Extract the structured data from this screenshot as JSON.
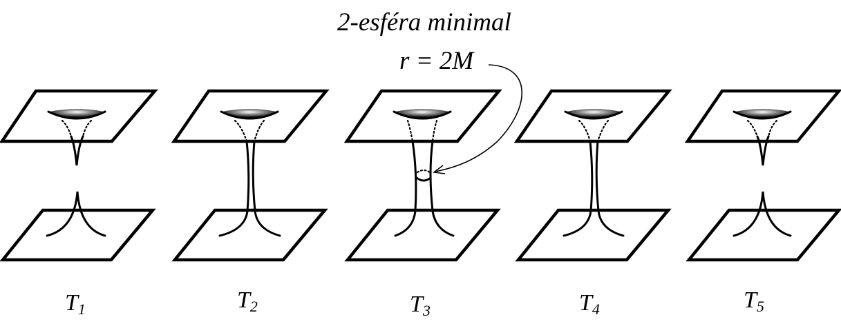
{
  "annotation": {
    "title": "2-esféra minimal",
    "formula": "r = 2M"
  },
  "stages": [
    {
      "letter": "T",
      "subscript": "1",
      "state": "pinched"
    },
    {
      "letter": "T",
      "subscript": "2",
      "state": "connected"
    },
    {
      "letter": "T",
      "subscript": "3",
      "state": "maximal-throat"
    },
    {
      "letter": "T",
      "subscript": "4",
      "state": "connected"
    },
    {
      "letter": "T",
      "subscript": "5",
      "state": "pinched"
    }
  ],
  "colors": {
    "ink": "#000000",
    "background": "#ffffff"
  }
}
